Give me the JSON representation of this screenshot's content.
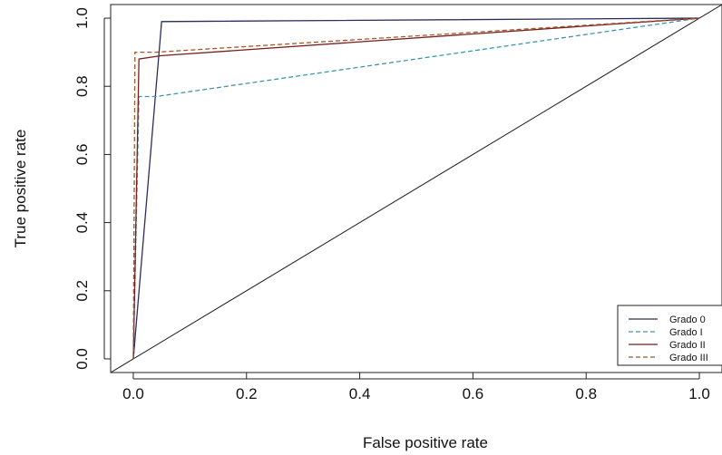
{
  "chart_data": {
    "type": "line",
    "title": "",
    "xlabel": "False positive rate",
    "ylabel": "True positive rate",
    "xlim": [
      -0.04,
      1.04
    ],
    "ylim": [
      -0.04,
      1.04
    ],
    "xticks": [
      0.0,
      0.2,
      0.4,
      0.6,
      0.8,
      1.0
    ],
    "yticks": [
      0.0,
      0.2,
      0.4,
      0.6,
      0.8,
      1.0
    ],
    "xtick_labels": [
      "0.0",
      "0.2",
      "0.4",
      "0.6",
      "0.8",
      "1.0"
    ],
    "ytick_labels": [
      "0.0",
      "0.2",
      "0.4",
      "0.6",
      "0.8",
      "1.0"
    ],
    "grid": false,
    "legend_position": "bottom-right",
    "series": [
      {
        "name": "Grado 0",
        "color": "#2b2d5e",
        "dash": "solid",
        "points": [
          [
            0.0,
            0.0
          ],
          [
            0.05,
            0.99
          ],
          [
            1.0,
            1.0
          ]
        ]
      },
      {
        "name": "Grado I",
        "color": "#3c97ad",
        "dash": "dashed",
        "points": [
          [
            0.0,
            0.0
          ],
          [
            0.01,
            0.77
          ],
          [
            0.04,
            0.77
          ],
          [
            1.0,
            1.0
          ]
        ]
      },
      {
        "name": "Grado II",
        "color": "#7a1f1f",
        "dash": "solid",
        "points": [
          [
            0.0,
            0.0
          ],
          [
            0.01,
            0.88
          ],
          [
            0.05,
            0.89
          ],
          [
            1.0,
            1.0
          ]
        ]
      },
      {
        "name": "Grado III",
        "color": "#a0582a",
        "dash": "dashed",
        "points": [
          [
            0.0,
            0.0
          ],
          [
            0.003,
            0.9
          ],
          [
            0.04,
            0.9
          ],
          [
            1.0,
            1.0
          ]
        ]
      }
    ],
    "reference_line": {
      "color": "#222222",
      "points": [
        [
          -0.04,
          -0.04
        ],
        [
          1.04,
          1.04
        ]
      ]
    }
  }
}
